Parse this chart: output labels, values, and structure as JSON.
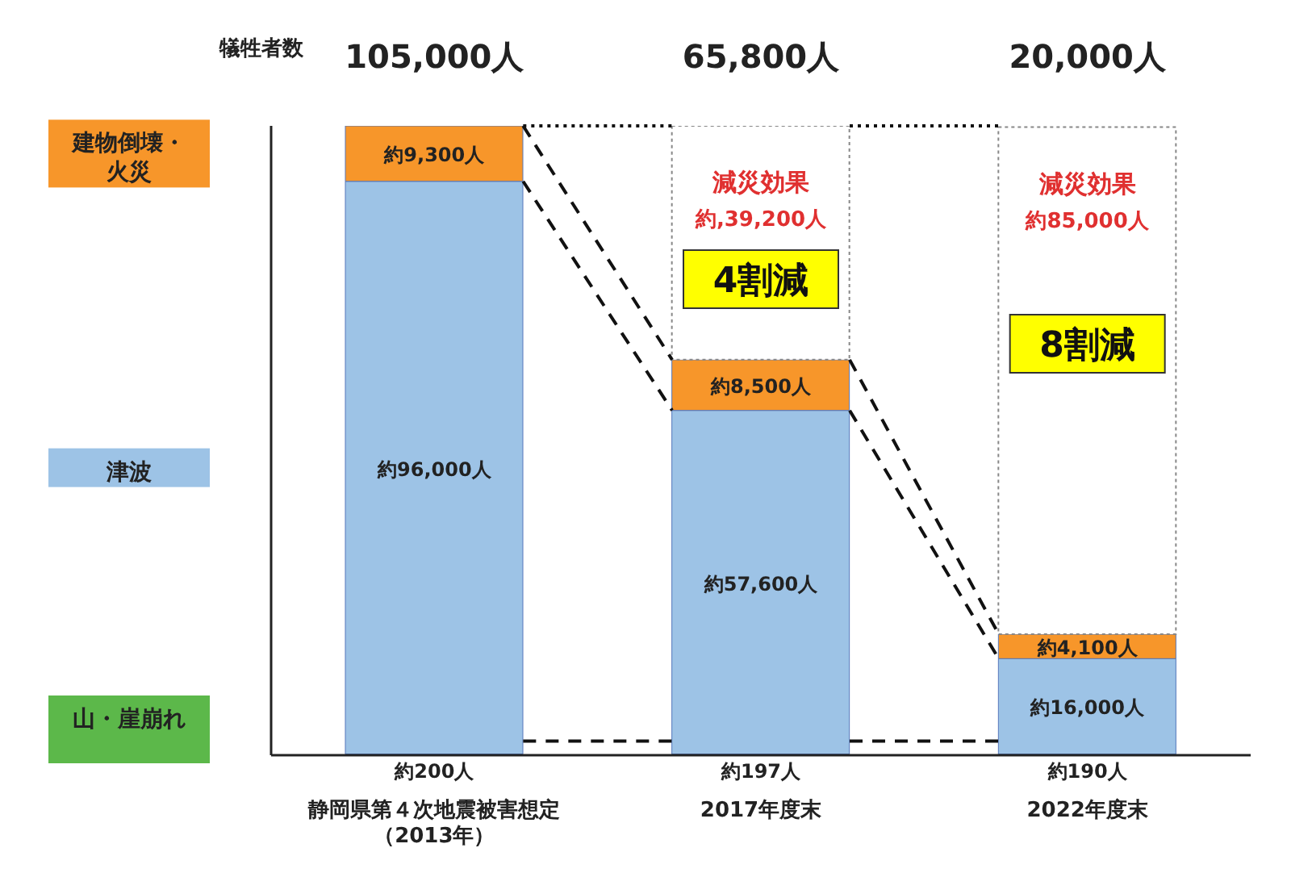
{
  "chart_data": {
    "type": "bar",
    "stacked": true,
    "ylabel": "犠牲者数",
    "categories": [
      "静岡県第４次地震被害想定（2013年）",
      "2017年度末",
      "2022年度末"
    ],
    "series": [
      {
        "name": "山・崖崩れ",
        "color": "#5cb84a",
        "values": [
          200,
          197,
          190
        ],
        "value_labels": [
          "約200人",
          "約197人",
          "約190人"
        ]
      },
      {
        "name": "津波",
        "color": "#9dc3e6",
        "values": [
          96000,
          57600,
          16000
        ],
        "value_labels": [
          "約96,000人",
          "約57,600人",
          "約16,000人"
        ]
      },
      {
        "name": "建物倒壊・火災",
        "color": "#f7962a",
        "values": [
          9300,
          8500,
          4100
        ],
        "value_labels": [
          "約9,300人",
          "約8,500人",
          "約4,100人"
        ]
      },
      {
        "name": "減災効果",
        "color": "#ffffff",
        "values": [
          null,
          39200,
          85000
        ],
        "value_labels": [
          null,
          "約,39,200人",
          "約85,000人"
        ]
      }
    ],
    "annotations": [
      "105,000人",
      "65,800人",
      "20,000人",
      "4割減",
      "8割減"
    ],
    "legend": "left",
    "grid": false
  }
}
